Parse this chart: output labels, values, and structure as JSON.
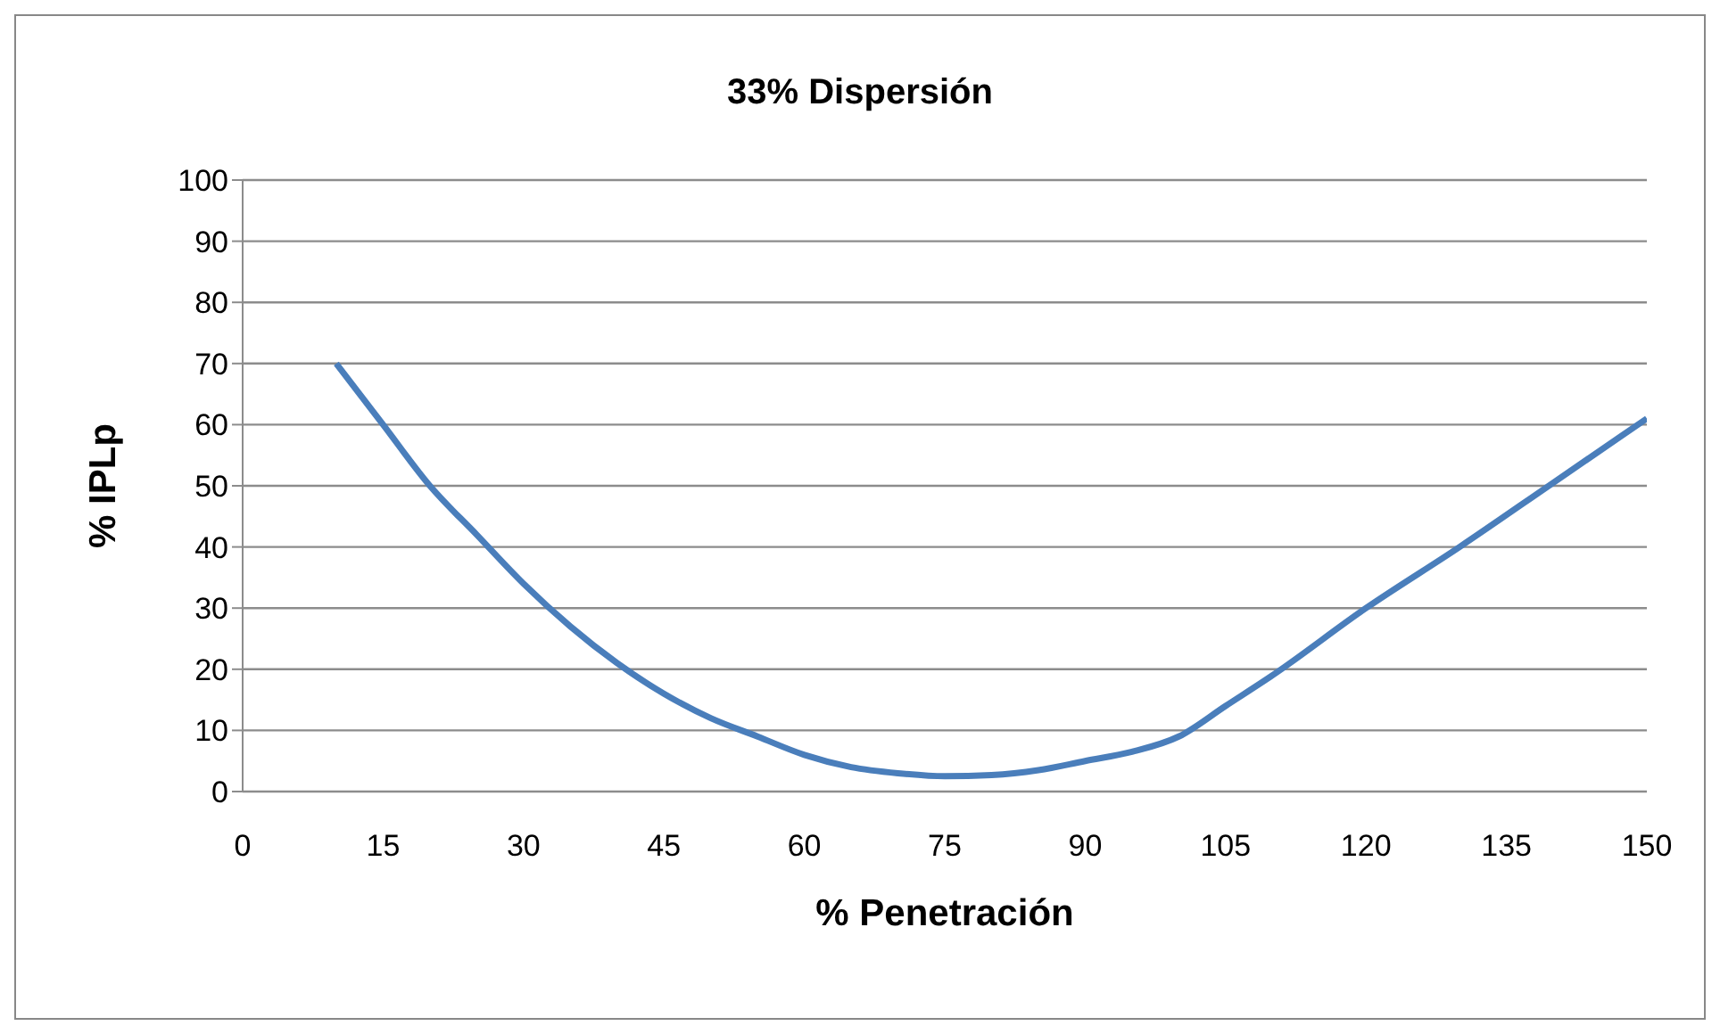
{
  "chart_data": {
    "type": "line",
    "title": "33% Dispersión",
    "xlabel": "% Penetración",
    "ylabel": "% IPLp",
    "x": [
      10,
      15,
      20,
      25,
      30,
      35,
      40,
      45,
      50,
      55,
      60,
      65,
      70,
      75,
      80,
      85,
      90,
      95,
      100,
      105,
      110,
      120,
      130,
      140,
      150
    ],
    "series": [
      {
        "color": "#4a7ebb",
        "values": [
          70,
          60,
          50,
          42,
          34,
          27,
          21,
          16,
          12,
          9,
          6,
          4,
          3,
          2.5,
          2.7,
          3.5,
          5,
          6.5,
          9,
          14,
          19,
          30,
          40,
          50.5,
          61
        ]
      }
    ],
    "xlim": [
      0,
      150
    ],
    "xticks": [
      0,
      15,
      30,
      45,
      60,
      75,
      90,
      105,
      120,
      135,
      150
    ],
    "ylim": [
      0,
      100
    ],
    "yticks": [
      0,
      10,
      20,
      30,
      40,
      50,
      60,
      70,
      80,
      90,
      100
    ],
    "grid": "y",
    "legend": false,
    "marker": "none",
    "line_style": "solid"
  }
}
